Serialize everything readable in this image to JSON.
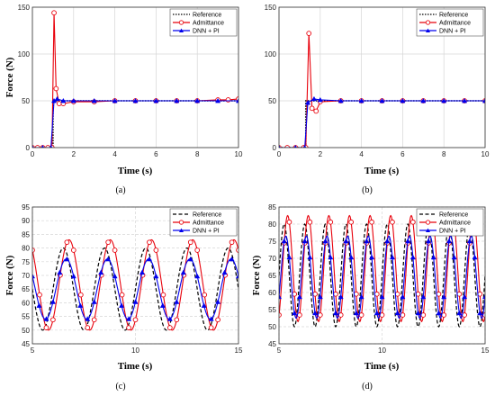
{
  "colors": {
    "reference": "#000000",
    "admittance": "#e8000b",
    "dnn_pi": "#0000ee",
    "grid": "#d6d6d6"
  },
  "chart_data": [
    {
      "type": "line",
      "caption": "(a)",
      "xlabel": "Time (s)",
      "ylabel": "Force (N)",
      "xlim": [
        0,
        10
      ],
      "ylim": [
        0,
        150
      ],
      "xticks": [
        "0",
        "2",
        "4",
        "6",
        "8",
        "10"
      ],
      "yticks": [
        "0",
        "50",
        "100",
        "150"
      ],
      "grid": true,
      "legend": "top-right",
      "legend_entries": [
        "Reference",
        "Admittance",
        "DNN + PI"
      ],
      "series": [
        {
          "name": "Reference",
          "style": "dotted",
          "x": [
            0,
            1.0,
            1.0,
            10
          ],
          "y": [
            0,
            0,
            50,
            50
          ]
        },
        {
          "name": "Admittance",
          "style": "circle",
          "x": [
            0,
            0.25,
            0.5,
            0.75,
            0.95,
            1.05,
            1.15,
            1.3,
            1.5,
            2,
            3,
            4,
            5,
            6,
            7,
            8,
            9,
            9.5,
            10
          ],
          "y": [
            0,
            0,
            0,
            0,
            0,
            144,
            63,
            47,
            47,
            49,
            49,
            50,
            50,
            50,
            50,
            50,
            51,
            51,
            52
          ]
        },
        {
          "name": "DNN + PI",
          "style": "triangle",
          "x": [
            0,
            0.5,
            0.9,
            1.05,
            1.2,
            1.5,
            2,
            3,
            4,
            5,
            6,
            7,
            8,
            9,
            10
          ],
          "y": [
            0,
            0,
            0,
            50,
            52,
            50,
            50,
            50,
            50,
            50,
            50,
            50,
            50,
            50,
            50
          ]
        }
      ]
    },
    {
      "type": "line",
      "caption": "(b)",
      "xlabel": "Time (s)",
      "ylabel": "",
      "xlim": [
        0,
        10
      ],
      "ylim": [
        0,
        150
      ],
      "xticks": [
        "0",
        "2",
        "4",
        "6",
        "8",
        "10"
      ],
      "yticks": [
        "0",
        "50",
        "100",
        "150"
      ],
      "grid": true,
      "legend": "top-right",
      "legend_entries": [
        "Reference",
        "Admittance",
        "DNN + PI"
      ],
      "series": [
        {
          "name": "Reference",
          "style": "dotted",
          "x": [
            0,
            1.3,
            1.3,
            10
          ],
          "y": [
            0,
            0,
            50,
            50
          ]
        },
        {
          "name": "Admittance",
          "style": "circle",
          "x": [
            0,
            0.4,
            0.8,
            1.2,
            1.3,
            1.45,
            1.6,
            1.8,
            2,
            3,
            4,
            5,
            6,
            7,
            8,
            9,
            10
          ],
          "y": [
            0,
            0,
            0,
            0,
            0,
            122,
            42,
            39,
            49,
            50,
            50,
            50,
            50,
            50,
            50,
            50,
            50
          ]
        },
        {
          "name": "DNN + PI",
          "style": "triangle",
          "x": [
            0,
            0.8,
            1.25,
            1.4,
            1.7,
            2,
            3,
            4,
            5,
            6,
            7,
            8,
            9,
            10
          ],
          "y": [
            0,
            0,
            0,
            48,
            52,
            51,
            50,
            50,
            50,
            50,
            50,
            50,
            50,
            50
          ]
        }
      ]
    },
    {
      "type": "line",
      "caption": "(c)",
      "xlabel": "Time (s)",
      "ylabel": "Force (N)",
      "xlim": [
        5,
        15
      ],
      "ylim": [
        45,
        95
      ],
      "xticks": [
        "5",
        "10",
        "15"
      ],
      "yticks": [
        "45",
        "50",
        "55",
        "60",
        "65",
        "70",
        "75",
        "80",
        "85",
        "90",
        "95"
      ],
      "grid": true,
      "legend": "top-right",
      "legend_entries": [
        "Reference",
        "Admittance",
        "DNN + PI"
      ],
      "wave": {
        "period": 2.0,
        "reference": {
          "center": 65,
          "amplitude": 15,
          "phase": 0.0
        },
        "admittance": {
          "center": 66.5,
          "amplitude": 16.5,
          "lag": 0.28
        },
        "dnn_pi": {
          "center": 65,
          "amplitude": 11,
          "lag": 0.14
        }
      },
      "series": [
        {
          "name": "Reference",
          "style": "dashed"
        },
        {
          "name": "Admittance",
          "style": "circle"
        },
        {
          "name": "DNN + PI",
          "style": "triangle"
        }
      ]
    },
    {
      "type": "line",
      "caption": "(d)",
      "xlabel": "Time (s)",
      "ylabel": "Force (N)",
      "xlim": [
        5,
        15
      ],
      "ylim": [
        45,
        85
      ],
      "xticks": [
        "5",
        "10",
        "15"
      ],
      "yticks": [
        "45",
        "50",
        "55",
        "60",
        "65",
        "70",
        "75",
        "80",
        "85"
      ],
      "grid": true,
      "legend": "top-right",
      "legend_entries": [
        "Reference",
        "Admittance",
        "DNN + PI"
      ],
      "wave": {
        "period": 1.0,
        "reference": {
          "center": 65,
          "amplitude": 15,
          "phase": 0.0
        },
        "admittance": {
          "center": 67,
          "amplitude": 15.5,
          "lag": 0.17
        },
        "dnn_pi": {
          "center": 64.5,
          "amplitude": 12,
          "lag": 0.08
        }
      },
      "series": [
        {
          "name": "Reference",
          "style": "dashed"
        },
        {
          "name": "Admittance",
          "style": "circle"
        },
        {
          "name": "DNN + PI",
          "style": "triangle"
        }
      ]
    }
  ]
}
